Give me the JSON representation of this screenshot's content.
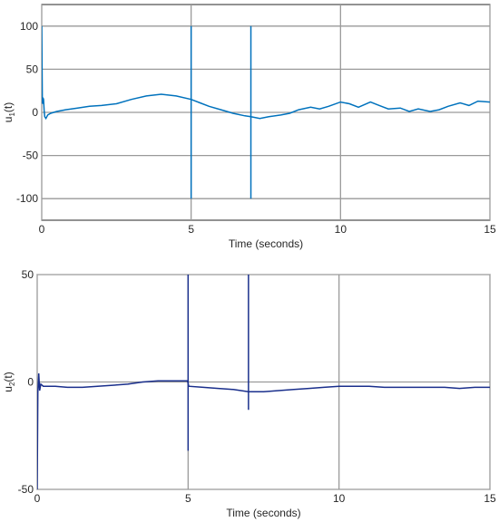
{
  "chart_data": [
    {
      "type": "line",
      "xlabel": "Time (seconds)",
      "ylabel_main": "u",
      "ylabel_sub": "1",
      "ylabel_suffix": "(t)",
      "xlim": [
        0,
        15
      ],
      "ylim": [
        -125,
        125
      ],
      "xticks": [
        0,
        5,
        10,
        15
      ],
      "yticks": [
        100,
        50,
        0,
        -50,
        -100
      ],
      "xtick_labels": [
        "0",
        "5",
        "10",
        "15"
      ],
      "ytick_labels": [
        "100",
        "50",
        "0",
        "-50",
        "-100"
      ],
      "grid": true,
      "line_color": "#0072BD",
      "series": [
        {
          "x": [
            0,
            0.02,
            0.04,
            0.06,
            0.08,
            0.1,
            0.14,
            0.2,
            0.3,
            0.5,
            0.8,
            1.2,
            1.6,
            2.0,
            2.5,
            3.0,
            3.5,
            4.0,
            4.5,
            5.0,
            5.3,
            5.6,
            6.0,
            6.4,
            6.8,
            7.0,
            7.3,
            7.6,
            8.0,
            8.3,
            8.6,
            9.0,
            9.3,
            9.6,
            10.0,
            10.3,
            10.6,
            11.0,
            11.3,
            11.6,
            12.0,
            12.3,
            12.6,
            13.0,
            13.3,
            13.6,
            14.0,
            14.3,
            14.6,
            15.0
          ],
          "y": [
            100,
            10,
            17,
            15,
            3,
            -5,
            -7,
            -3,
            -1,
            1,
            3,
            5,
            7,
            8,
            10,
            15,
            19,
            21,
            19,
            15,
            11,
            7,
            3,
            -1,
            -4,
            -5,
            -7,
            -5,
            -3,
            -1,
            3,
            6,
            4,
            7,
            12,
            10,
            6,
            12,
            8,
            4,
            5,
            1,
            4,
            1,
            3,
            7,
            11,
            8,
            13,
            12
          ]
        }
      ],
      "spikes": [
        {
          "x": 5.0,
          "y_top": 100,
          "y_bottom": -100
        },
        {
          "x": 7.0,
          "y_top": 100,
          "y_bottom": -100
        }
      ]
    },
    {
      "type": "line",
      "xlabel": "Time (seconds)",
      "ylabel_main": "u",
      "ylabel_sub": "2",
      "ylabel_suffix": "(t)",
      "xlim": [
        0,
        15
      ],
      "ylim": [
        -50,
        50
      ],
      "xticks": [
        0,
        5,
        10,
        15
      ],
      "yticks": [
        50,
        0,
        -50
      ],
      "xtick_labels": [
        "0",
        "5",
        "10",
        "15"
      ],
      "ytick_labels": [
        "50",
        "0",
        "-50"
      ],
      "grid": true,
      "line_color": "#1a2f8c",
      "series": [
        {
          "x": [
            0,
            0.02,
            0.05,
            0.08,
            0.12,
            0.2,
            0.35,
            0.6,
            1.0,
            1.5,
            2.0,
            2.5,
            3.0,
            3.5,
            4.0,
            4.5,
            4.98,
            5.02,
            5.5,
            6.0,
            6.5,
            7.0,
            7.5,
            8.0,
            8.5,
            9.0,
            9.5,
            10.0,
            10.5,
            11.0,
            11.5,
            12.0,
            12.5,
            13.0,
            13.5,
            14.0,
            14.5,
            15.0
          ],
          "y": [
            -50,
            -5,
            4,
            -4,
            -1,
            -2,
            -2,
            -2,
            -2.5,
            -2.5,
            -2,
            -1.5,
            -1,
            0,
            0.5,
            0.5,
            0.5,
            -2,
            -2.5,
            -3,
            -3.5,
            -4.5,
            -4.5,
            -4,
            -3.5,
            -3,
            -2.5,
            -2,
            -2,
            -2,
            -2.5,
            -2.5,
            -2.5,
            -2.5,
            -2.5,
            -3,
            -2.5,
            -2.5
          ]
        }
      ],
      "spikes": [
        {
          "x": 5.0,
          "y_top": 50,
          "y_bottom": -32
        },
        {
          "x": 7.0,
          "y_top": 50,
          "y_bottom": -13
        }
      ]
    }
  ]
}
